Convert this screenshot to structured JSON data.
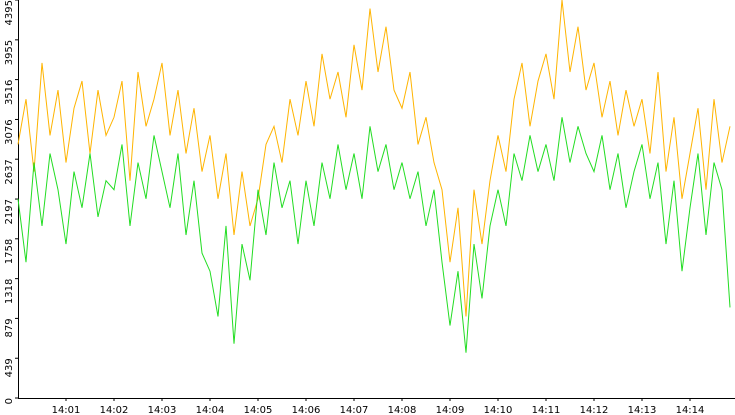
{
  "chart_data": {
    "type": "line",
    "categories": [
      null,
      null,
      null,
      null,
      null,
      null,
      "14:01",
      null,
      null,
      null,
      null,
      null,
      "14:02",
      null,
      null,
      null,
      null,
      null,
      "14:03",
      null,
      null,
      null,
      null,
      null,
      "14:04",
      null,
      null,
      null,
      null,
      null,
      "14:05",
      null,
      null,
      null,
      null,
      null,
      "14:06",
      null,
      null,
      null,
      null,
      null,
      "14:07",
      null,
      null,
      null,
      null,
      null,
      "14:08",
      null,
      null,
      null,
      null,
      null,
      "14:09",
      null,
      null,
      null,
      null,
      null,
      "14:10",
      null,
      null,
      null,
      null,
      null,
      "14:11",
      null,
      null,
      null,
      null,
      null,
      "14:12",
      null,
      null,
      null,
      null,
      null,
      "14:13",
      null,
      null,
      null,
      null,
      null,
      "14:14",
      null,
      null,
      null,
      null,
      null
    ],
    "series": [
      {
        "color": "#ffb400",
        "values": [
          2800,
          3300,
          2500,
          3700,
          2900,
          3400,
          2600,
          3200,
          3500,
          2700,
          3400,
          2900,
          3100,
          3500,
          2400,
          3600,
          3000,
          3300,
          3700,
          2900,
          3400,
          2700,
          3200,
          2500,
          2900,
          2200,
          2700,
          1800,
          2500,
          1900,
          2200,
          2800,
          3000,
          2600,
          3300,
          2900,
          3500,
          3000,
          3800,
          3300,
          3600,
          3100,
          3900,
          3400,
          4300,
          3600,
          4100,
          3400,
          3200,
          3600,
          2800,
          3100,
          2600,
          2300,
          1500,
          2100,
          900,
          2300,
          1700,
          2400,
          2900,
          2500,
          3300,
          3700,
          3000,
          3500,
          3800,
          3300,
          4395,
          3600,
          4100,
          3400,
          3700,
          3100,
          3500,
          2900,
          3400,
          3000,
          3300,
          2700,
          3600,
          2500,
          3100,
          2200,
          2700,
          3200,
          2300,
          3300,
          2600,
          3000
        ]
      },
      {
        "color": "#22dd22",
        "values": [
          2200,
          1500,
          2600,
          1900,
          2700,
          2300,
          1700,
          2500,
          2100,
          2700,
          2000,
          2400,
          2300,
          2800,
          1900,
          2600,
          2200,
          2900,
          2500,
          2100,
          2700,
          1800,
          2400,
          1600,
          1400,
          900,
          1900,
          600,
          1700,
          1300,
          2300,
          1800,
          2600,
          2100,
          2400,
          1700,
          2400,
          1900,
          2600,
          2200,
          2800,
          2300,
          2700,
          2200,
          3000,
          2500,
          2800,
          2300,
          2600,
          2200,
          2500,
          1900,
          2300,
          1500,
          800,
          1400,
          500,
          1700,
          1100,
          1900,
          2300,
          1900,
          2700,
          2400,
          2900,
          2500,
          2800,
          2400,
          3100,
          2600,
          3000,
          2700,
          2500,
          2900,
          2300,
          2700,
          2100,
          2500,
          2800,
          2200,
          2600,
          1700,
          2400,
          1400,
          2100,
          2700,
          1800,
          2600,
          2300,
          1000
        ]
      }
    ],
    "ylim": [
      0,
      4395
    ],
    "yticks": [
      0,
      439,
      879,
      1318,
      1758,
      2197,
      2637,
      3076,
      3516,
      3955,
      4395
    ]
  }
}
